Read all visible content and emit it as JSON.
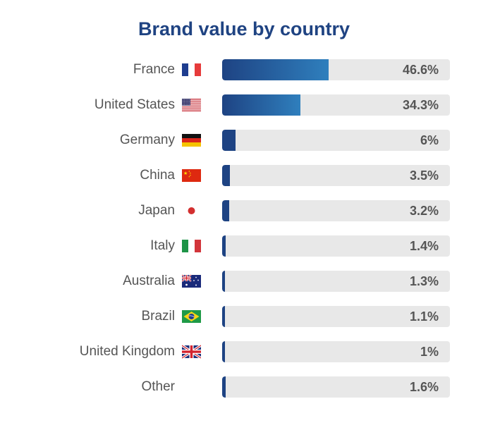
{
  "chart_data": {
    "type": "bar",
    "orientation": "horizontal",
    "title": "Brand value by country",
    "xlim": [
      0,
      100
    ],
    "categories": [
      "France",
      "United States",
      "Germany",
      "China",
      "Japan",
      "Italy",
      "Australia",
      "Brazil",
      "United Kingdom",
      "Other"
    ],
    "values": [
      46.6,
      34.3,
      6,
      3.5,
      3.2,
      1.4,
      1.3,
      1.1,
      1,
      1.6
    ],
    "value_labels": [
      "46.6%",
      "34.3%",
      "6%",
      "3.5%",
      "3.2%",
      "1.4%",
      "1.3%",
      "1.1%",
      "1%",
      "1.6%"
    ],
    "flag_icons": [
      "france-flag-icon",
      "united-states-flag-icon",
      "germany-flag-icon",
      "china-flag-icon",
      "japan-flag-icon",
      "italy-flag-icon",
      "australia-flag-icon",
      "brazil-flag-icon",
      "united-kingdom-flag-icon",
      ""
    ],
    "colors": {
      "title": "#1f4382",
      "bar_start": "#1e4383",
      "bar_end": "#2f7fbd",
      "track": "#e8e8e8",
      "text": "#555555"
    }
  }
}
